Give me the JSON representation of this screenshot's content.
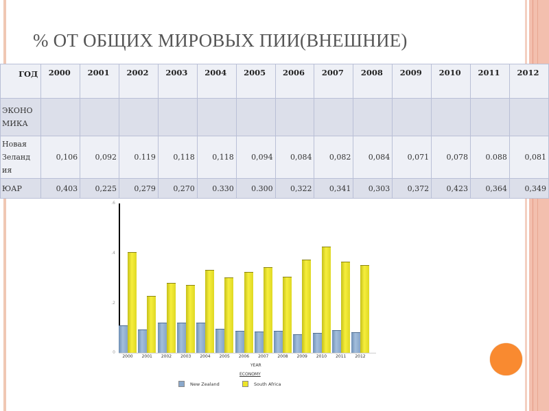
{
  "title": "% ОТ ОБЩИХ  МИРОВЫХ ПИИ(ВНЕШНИЕ)",
  "table": {
    "header_label": "ГОД",
    "years": [
      "2000",
      "2001",
      "2002",
      "2003",
      "2004",
      "2005",
      "2006",
      "2007",
      "2008",
      "2009",
      "2010",
      "2011",
      "2012"
    ],
    "rows": [
      {
        "label_lines": [
          "ЭКОНО",
          "МИКА"
        ],
        "values": [
          "",
          "",
          "",
          "",
          "",
          "",
          "",
          "",
          "",
          "",
          "",
          "",
          ""
        ]
      },
      {
        "label_lines": [
          "Новая",
          "Зеланд",
          "ия"
        ],
        "values": [
          "0,106",
          "0,092",
          "0.119",
          "0,118",
          "0,118",
          "0,094",
          "0,084",
          "0,082",
          "0,084",
          "0,071",
          "0,078",
          "0.088",
          "0,081"
        ]
      },
      {
        "label_lines": [
          "ЮАР"
        ],
        "values": [
          "0,403",
          "0,225",
          "0,279",
          "0,270",
          "0.330",
          "0.300",
          "0,322",
          "0,341",
          "0,303",
          "0,372",
          "0,423",
          "0,364",
          "0,349"
        ]
      }
    ]
  },
  "chart_data": {
    "type": "bar",
    "title": "",
    "xlabel": "YEAR",
    "ylabel": "",
    "legend_title": "ECONOMY",
    "legend_position": "bottom",
    "grid": false,
    "ylim": [
      0,
      0.6
    ],
    "yticks": [
      "0",
      ".2",
      ".4",
      ".6"
    ],
    "categories": [
      "2000",
      "2001",
      "2002",
      "2003",
      "2004",
      "2005",
      "2006",
      "2007",
      "2008",
      "2009",
      "2010",
      "2011",
      "2012"
    ],
    "series": [
      {
        "name": "New Zealand",
        "color": "#8aa8cb",
        "values": [
          0.106,
          0.092,
          0.119,
          0.118,
          0.118,
          0.094,
          0.084,
          0.082,
          0.084,
          0.071,
          0.078,
          0.088,
          0.081
        ]
      },
      {
        "name": "South Africa",
        "color": "#ece429",
        "values": [
          0.403,
          0.225,
          0.279,
          0.27,
          0.33,
          0.3,
          0.322,
          0.341,
          0.303,
          0.372,
          0.423,
          0.364,
          0.349
        ]
      }
    ]
  },
  "decor": {
    "stripe_color": "#f0c8b4",
    "accent_circle_color": "#f98a30"
  }
}
